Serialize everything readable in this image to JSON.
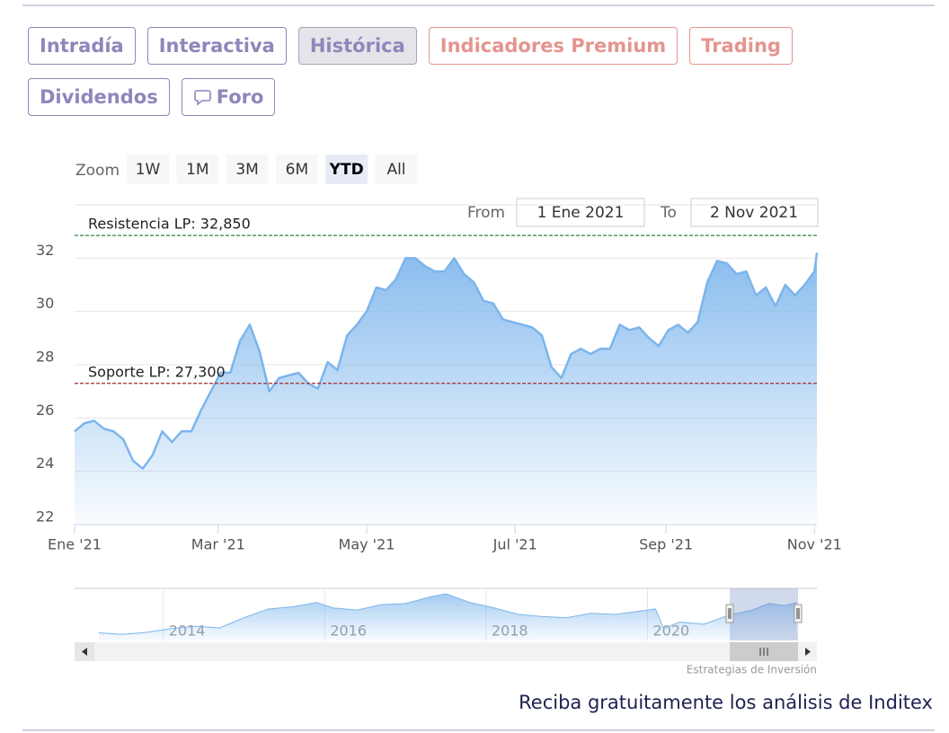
{
  "tabs": [
    "Intradía",
    "Interactiva",
    "Histórica",
    "Indicadores Premium",
    "Trading",
    "Dividendos",
    "Foro"
  ],
  "chart_data": {
    "type": "area",
    "range_selector": {
      "zoom_label": "Zoom",
      "buttons": [
        "1W",
        "1M",
        "3M",
        "6M",
        "YTD",
        "All"
      ],
      "selected": 4,
      "from_label": "From",
      "from": "1 Ene 2021",
      "to_label": "To",
      "to": "2 Nov 2021"
    },
    "x": [
      1,
      5,
      9,
      13,
      17,
      21,
      25,
      29,
      33,
      37,
      41,
      45,
      49,
      53,
      57,
      61,
      65,
      69,
      73,
      77,
      81,
      85,
      89,
      93,
      97,
      101,
      105,
      109,
      113,
      117,
      121,
      125,
      129,
      133,
      137,
      141,
      145,
      149,
      153,
      157,
      161,
      165,
      169,
      173,
      177,
      181,
      185,
      189,
      193,
      197,
      201,
      205,
      209,
      213,
      217,
      221,
      225,
      229,
      233,
      237,
      241,
      245,
      249,
      253,
      257,
      261,
      265,
      269,
      273,
      277,
      281,
      285,
      289,
      293,
      297,
      301,
      305,
      306
    ],
    "values": [
      25.5,
      25.8,
      25.9,
      25.6,
      25.5,
      25.2,
      24.4,
      24.1,
      24.6,
      25.5,
      25.1,
      25.5,
      25.5,
      26.3,
      27.0,
      27.7,
      27.7,
      28.9,
      29.5,
      28.5,
      27.0,
      27.5,
      27.6,
      27.7,
      27.3,
      27.1,
      28.1,
      27.8,
      29.1,
      29.5,
      30.0,
      30.9,
      30.8,
      31.2,
      32.0,
      32.0,
      31.7,
      31.5,
      31.5,
      32.0,
      31.4,
      31.1,
      30.4,
      30.3,
      29.7,
      29.6,
      29.5,
      29.4,
      29.1,
      27.9,
      27.5,
      28.4,
      28.6,
      28.4,
      28.6,
      28.6,
      29.5,
      29.3,
      29.4,
      29.0,
      28.7,
      29.3,
      29.5,
      29.2,
      29.6,
      31.1,
      31.9,
      31.8,
      31.4,
      31.5,
      30.6,
      30.9,
      30.2,
      31.0,
      30.6,
      31.0,
      31.5,
      32.2
    ],
    "color": "#7cb5ec",
    "xlim": [
      1,
      306
    ],
    "xticks": [
      {
        "value": 1,
        "label": "Ene '21"
      },
      {
        "value": 60,
        "label": "Mar '21"
      },
      {
        "value": 121,
        "label": "May '21"
      },
      {
        "value": 182,
        "label": "Jul '21"
      },
      {
        "value": 244,
        "label": "Sep '21"
      },
      {
        "value": 305,
        "label": "Nov '21"
      }
    ],
    "ylim": [
      22,
      34
    ],
    "yticks": [
      22,
      24,
      26,
      28,
      30,
      32
    ],
    "grid": true,
    "plot_lines": [
      {
        "label": "Resistencia LP: 32,850",
        "value": 32.85,
        "color": "#2e8b2e"
      },
      {
        "label": "Soporte LP: 27,300",
        "value": 27.3,
        "color": "#a52a2a"
      }
    ],
    "navigator": {
      "x": [
        2013.2,
        2013.5,
        2013.8,
        2014.1,
        2014.4,
        2014.7,
        2015.0,
        2015.3,
        2015.6,
        2015.9,
        2016.1,
        2016.4,
        2016.7,
        2017.0,
        2017.3,
        2017.5,
        2017.8,
        2018.1,
        2018.4,
        2018.7,
        2019.0,
        2019.3,
        2019.6,
        2019.9,
        2020.1,
        2020.2,
        2020.4,
        2020.7,
        2021.0,
        2021.3,
        2021.5,
        2021.7,
        2021.85
      ],
      "values": [
        17.5,
        16.8,
        17.8,
        19.5,
        20.5,
        19.8,
        24.5,
        28.5,
        29.5,
        31.5,
        29.0,
        28.0,
        30.5,
        31.0,
        34.0,
        35.5,
        31.5,
        29.0,
        26.0,
        25.0,
        24.5,
        26.5,
        26.0,
        27.5,
        28.5,
        19.5,
        22.5,
        21.5,
        25.5,
        28.0,
        31.0,
        30.0,
        31.5
      ],
      "xlim": [
        2012.9,
        2022.1
      ],
      "ylim": [
        14,
        38
      ],
      "xticks": [
        2014,
        2016,
        2018,
        2020
      ]
    },
    "credit": "Estrategias de Inversión"
  },
  "footer": "Reciba gratuitamente los análisis de Inditex"
}
